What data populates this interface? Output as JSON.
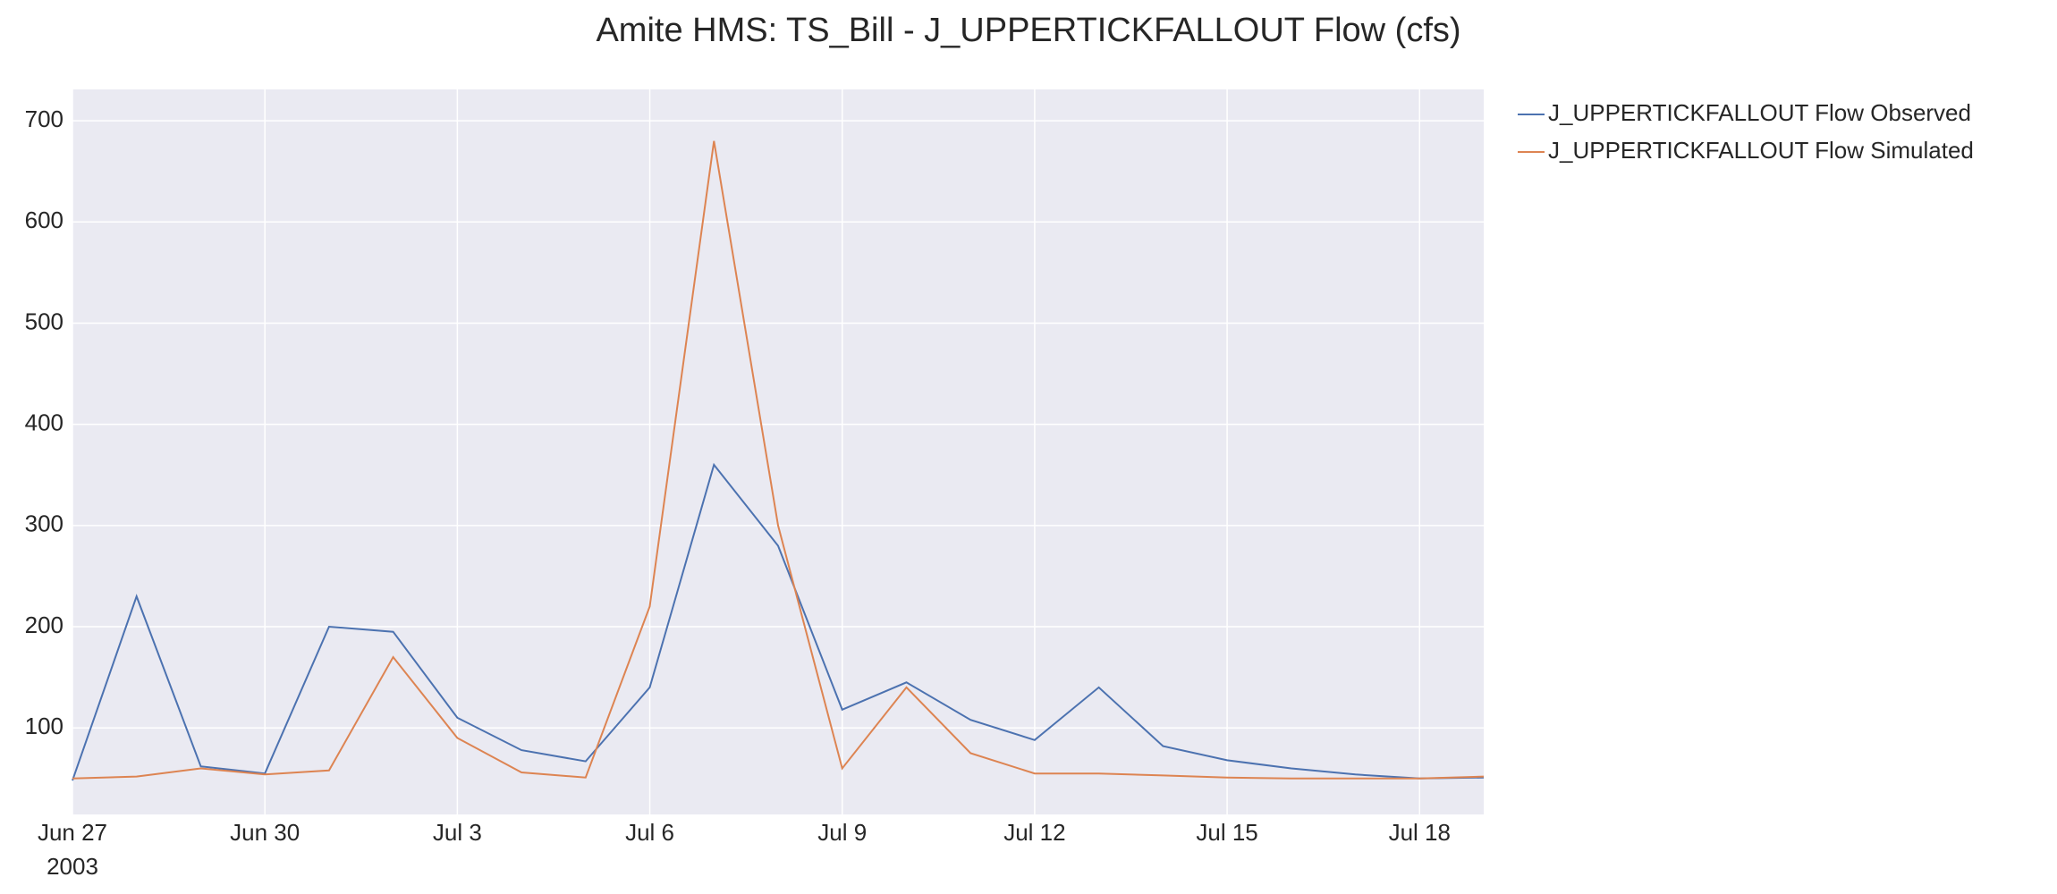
{
  "chart_data": {
    "type": "line",
    "title": "Amite HMS: TS_Bill - J_UPPERTICKFALLOUT Flow (cfs)",
    "x": [
      "2003-06-27",
      "2003-06-28",
      "2003-06-29",
      "2003-06-30",
      "2003-07-01",
      "2003-07-02",
      "2003-07-03",
      "2003-07-04",
      "2003-07-05",
      "2003-07-06",
      "2003-07-07",
      "2003-07-08",
      "2003-07-09",
      "2003-07-10",
      "2003-07-11",
      "2003-07-12",
      "2003-07-13",
      "2003-07-14",
      "2003-07-15",
      "2003-07-16",
      "2003-07-17",
      "2003-07-18",
      "2003-07-19"
    ],
    "series": [
      {
        "name": "J_UPPERTICKFALLOUT Flow Observed",
        "color": "#4c72b0",
        "values": [
          48,
          230,
          62,
          55,
          200,
          195,
          110,
          78,
          67,
          140,
          360,
          280,
          118,
          145,
          108,
          88,
          140,
          82,
          68,
          60,
          54,
          50,
          51
        ]
      },
      {
        "name": "J_UPPERTICKFALLOUT Flow Simulated",
        "color": "#dd8452",
        "values": [
          50,
          52,
          60,
          54,
          58,
          170,
          90,
          56,
          51,
          220,
          680,
          300,
          60,
          140,
          75,
          55,
          55,
          53,
          51,
          50,
          50,
          50,
          52
        ]
      }
    ],
    "xlim": [
      "2003-06-27",
      "2003-07-19"
    ],
    "xticks": [
      {
        "value": "2003-06-27",
        "label": "Jun 27"
      },
      {
        "value": "2003-06-30",
        "label": "Jun 30"
      },
      {
        "value": "2003-07-03",
        "label": "Jul 3"
      },
      {
        "value": "2003-07-06",
        "label": "Jul 6"
      },
      {
        "value": "2003-07-09",
        "label": "Jul 9"
      },
      {
        "value": "2003-07-12",
        "label": "Jul 12"
      },
      {
        "value": "2003-07-15",
        "label": "Jul 15"
      },
      {
        "value": "2003-07-18",
        "label": "Jul 18"
      }
    ],
    "xtick_year": "2003",
    "ylim": [
      14.5,
      731
    ],
    "yticks": [
      100,
      200,
      300,
      400,
      500,
      600,
      700
    ],
    "grid": true,
    "legend": "outside-right"
  }
}
